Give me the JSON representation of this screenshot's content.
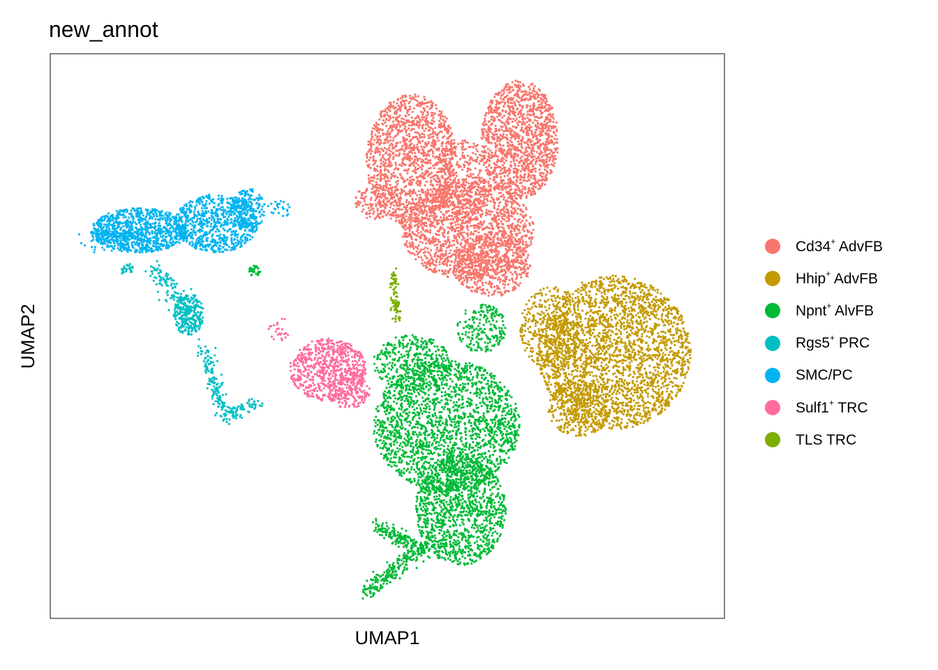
{
  "chart_data": {
    "type": "scatter",
    "title": "new_annot",
    "xlabel": "UMAP1",
    "ylabel": "UMAP2",
    "xticks": "none",
    "yticks": "none",
    "grid": false,
    "legend_position": "right",
    "series": [
      {
        "name": "Cd34⁺ AdvFB",
        "label_main": "Cd34",
        "label_sup": "+",
        "label_rest": " AdvFB",
        "color": "#F8766D"
      },
      {
        "name": "Hhip⁺ AdvFB",
        "label_main": "Hhip",
        "label_sup": "+",
        "label_rest": " AdvFB",
        "color": "#C49A00"
      },
      {
        "name": "Npnt⁺ AlvFB",
        "label_main": "Npnt",
        "label_sup": "+",
        "label_rest": " AlvFB",
        "color": "#00BA38"
      },
      {
        "name": "Rgs5⁺ PRC",
        "label_main": "Rgs5",
        "label_sup": "+",
        "label_rest": " PRC",
        "color": "#00BFC4"
      },
      {
        "name": "SMC/PC",
        "label_main": "SMC/PC",
        "label_sup": "",
        "label_rest": "",
        "color": "#00B4F0"
      },
      {
        "name": "Sulf1⁺ TRC",
        "label_main": "Sulf1",
        "label_sup": "+",
        "label_rest": " TRC",
        "color": "#FF6C9D"
      },
      {
        "name": "TLS TRC",
        "label_main": "TLS TRC",
        "label_sup": "",
        "label_rest": "",
        "color": "#7CAE00"
      }
    ]
  }
}
